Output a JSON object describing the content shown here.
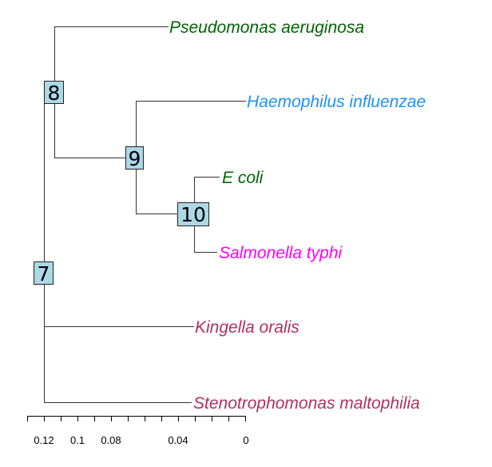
{
  "tree": {
    "leaves": [
      {
        "id": "pseudomonas",
        "label": "Pseudomonas aeruginosa",
        "color": "#006400"
      },
      {
        "id": "haemophilus",
        "label": "Haemophilus influenzae",
        "color": "#1E90FF"
      },
      {
        "id": "ecoli",
        "label": "E coli",
        "color": "#006400"
      },
      {
        "id": "salmonella",
        "label": "Salmonella typhi",
        "color": "#FF00FF"
      },
      {
        "id": "kingella",
        "label": "Kingella oralis",
        "color": "#B03060"
      },
      {
        "id": "stenotrophomonas",
        "label": "Stenotrophomonas maltophilia",
        "color": "#B03060"
      }
    ],
    "nodes": [
      {
        "id": "n7",
        "label": "7",
        "fill": "#ADD8E6"
      },
      {
        "id": "n8",
        "label": "8",
        "fill": "#ADD8E6"
      },
      {
        "id": "n9",
        "label": "9",
        "fill": "#ADD8E6"
      },
      {
        "id": "n10",
        "label": "10",
        "fill": "#ADD8E6"
      }
    ]
  },
  "axis": {
    "ticks": [
      {
        "value": 0.12,
        "label": "0.12"
      },
      {
        "value": 0.1,
        "label": "0.1"
      },
      {
        "value": 0.08,
        "label": "0.08"
      },
      {
        "value": 0.04,
        "label": "0.04"
      },
      {
        "value": 0,
        "label": "0"
      }
    ]
  }
}
